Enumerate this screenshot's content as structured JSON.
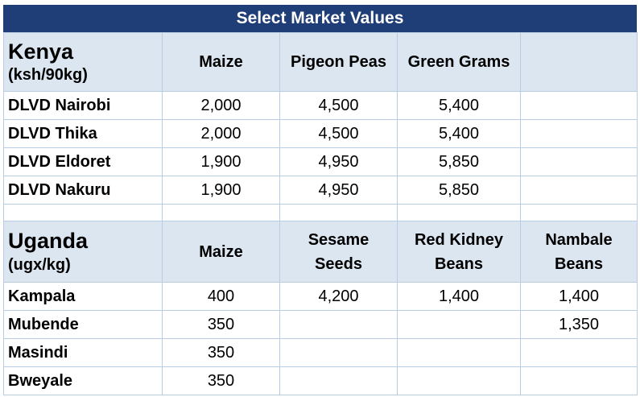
{
  "title": "Select Market Values",
  "kenya": {
    "name": "Kenya",
    "unit": "(ksh/90kg)",
    "headers": [
      "Maize",
      "Pigeon Peas",
      "Green Grams",
      ""
    ],
    "rows": [
      {
        "label": "DLVD Nairobi",
        "values": [
          "2,000",
          "4,500",
          "5,400",
          ""
        ]
      },
      {
        "label": "DLVD Thika",
        "values": [
          "2,000",
          "4,500",
          "5,400",
          ""
        ]
      },
      {
        "label": "DLVD Eldoret",
        "values": [
          "1,900",
          "4,950",
          "5,850",
          ""
        ]
      },
      {
        "label": "DLVD Nakuru",
        "values": [
          "1,900",
          "4,950",
          "5,850",
          ""
        ]
      }
    ]
  },
  "uganda": {
    "name": "Uganda",
    "unit": "(ugx/kg)",
    "headers": [
      [
        "Maize"
      ],
      [
        "Sesame",
        "Seeds"
      ],
      [
        "Red Kidney",
        "Beans"
      ],
      [
        "Nambale",
        "Beans"
      ]
    ],
    "rows": [
      {
        "label": "Kampala",
        "values": [
          "400",
          "4,200",
          "1,400",
          "1,400"
        ]
      },
      {
        "label": "Mubende",
        "values": [
          "350",
          "",
          "",
          "1,350"
        ]
      },
      {
        "label": "Masindi",
        "values": [
          "350",
          "",
          "",
          ""
        ]
      },
      {
        "label": "Bweyale",
        "values": [
          "350",
          "",
          "",
          ""
        ]
      }
    ]
  }
}
